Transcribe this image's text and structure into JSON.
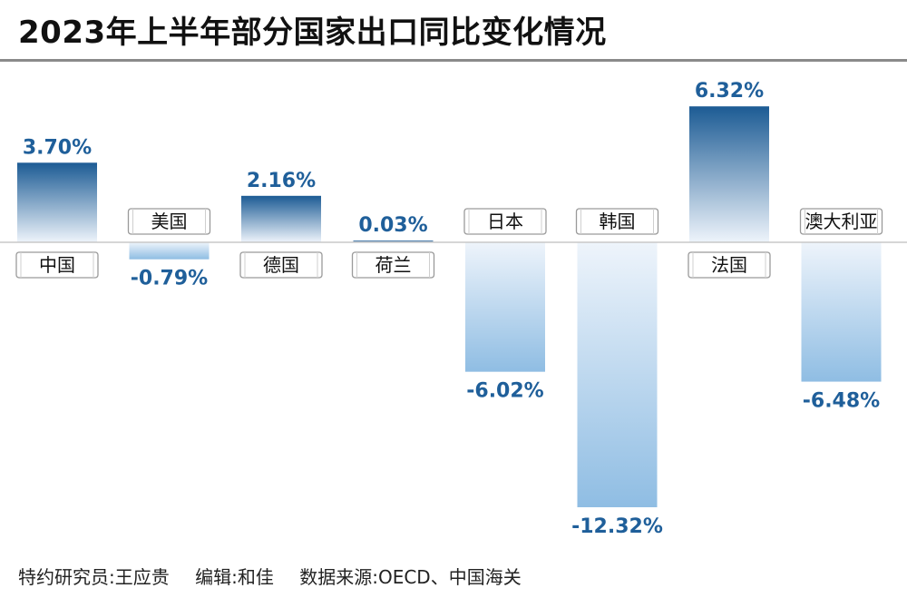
{
  "title": "2023年上半年部分国家出口同比变化情况",
  "footer": {
    "researcher": "特约研究员:王应贵",
    "editor": "编辑:和佳",
    "source": "数据来源:OECD、中国海关"
  },
  "colors": {
    "bar_top_dark": "#1c5b94",
    "bar_light": "#eef4fb",
    "label_text": "#1f5f9a",
    "baseline": "#c8c8c8"
  },
  "chart_data": {
    "type": "bar",
    "title": "2023年上半年部分国家出口同比变化情况",
    "unit": "%",
    "categories": [
      "中国",
      "美国",
      "德国",
      "荷兰",
      "日本",
      "韩国",
      "法国",
      "澳大利亚"
    ],
    "values": [
      3.7,
      -0.79,
      2.16,
      0.03,
      -6.02,
      -12.32,
      6.32,
      -6.48
    ],
    "value_labels": [
      "3.70%",
      "-0.79%",
      "2.16%",
      "0.03%",
      "-6.02%",
      "-12.32%",
      "6.32%",
      "-6.48%"
    ],
    "ylim": [
      -12.32,
      6.32
    ],
    "grid": false,
    "legend": "none"
  }
}
